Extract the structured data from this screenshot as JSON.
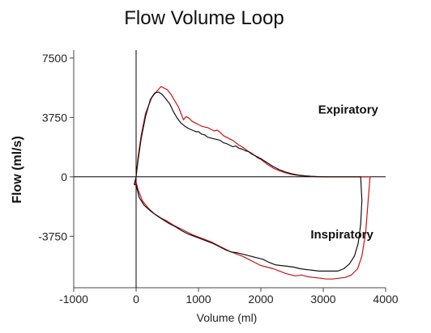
{
  "chart_data": {
    "type": "line",
    "title": "Flow Volume Loop",
    "xlabel": "Volume (ml)",
    "ylabel": "Flow (ml/s)",
    "xlim": [
      -1000,
      4000
    ],
    "ylim": [
      -7000,
      8000
    ],
    "xticks": [
      -1000,
      0,
      1000,
      2000,
      3000,
      4000
    ],
    "yticks": [
      7500,
      3750,
      0,
      -3750
    ],
    "grid": false,
    "annotations": [
      {
        "text": "Expiratory",
        "x": 3400,
        "y": 4000
      },
      {
        "text": "Inspiratory",
        "x": 3300,
        "y": -3900
      }
    ],
    "series": [
      {
        "color": "#cc1111",
        "x": [
          -30,
          0,
          30,
          80,
          150,
          250,
          330,
          400,
          450,
          500,
          560,
          620,
          680,
          720,
          760,
          800,
          850,
          900,
          950,
          1000,
          1050,
          1100,
          1150,
          1200,
          1250,
          1300,
          1350,
          1400,
          1450,
          1500,
          1550,
          1600,
          1650,
          1700,
          1750,
          1800,
          1850,
          1900,
          1950,
          2000,
          2100,
          2200,
          2300,
          2400,
          2500,
          2600,
          2700,
          2800,
          2900,
          3000,
          3100,
          3200,
          3300,
          3400,
          3500,
          3600,
          3700,
          3750,
          3720,
          3680,
          3620,
          3550,
          3450,
          3350,
          3250,
          3150,
          3050,
          2950,
          2850,
          2750,
          2650,
          2550,
          2400,
          2300,
          2200,
          2100,
          2000,
          1900,
          1800,
          1700,
          1600,
          1500,
          1400,
          1300,
          1200,
          1100,
          1000,
          900,
          800,
          700,
          600,
          500,
          400,
          300,
          200,
          100,
          30,
          0,
          -30
        ],
        "y": [
          -500,
          0,
          1200,
          2600,
          4000,
          5000,
          5400,
          5700,
          5600,
          5500,
          5200,
          4800,
          4400,
          4000,
          3600,
          3800,
          3700,
          3500,
          3400,
          3300,
          3200,
          3150,
          3100,
          3000,
          2900,
          2950,
          2800,
          2600,
          2500,
          2400,
          2300,
          2150,
          2000,
          1900,
          1750,
          1600,
          1500,
          1350,
          1200,
          1100,
          800,
          550,
          380,
          250,
          150,
          90,
          50,
          25,
          10,
          5,
          0,
          0,
          0,
          0,
          0,
          0,
          0,
          0,
          -1500,
          -3500,
          -5000,
          -5800,
          -6200,
          -6350,
          -6400,
          -6450,
          -6450,
          -6400,
          -6350,
          -6300,
          -6200,
          -6250,
          -6100,
          -5950,
          -5800,
          -5700,
          -5600,
          -5400,
          -5200,
          -5000,
          -4850,
          -4700,
          -4500,
          -4300,
          -4100,
          -3950,
          -3800,
          -3650,
          -3450,
          -3250,
          -3050,
          -2800,
          -2600,
          -2350,
          -2000,
          -1500,
          -800,
          -300,
          -500
        ]
      },
      {
        "color": "#111111",
        "x": [
          -30,
          0,
          30,
          80,
          150,
          230,
          300,
          360,
          420,
          480,
          540,
          600,
          660,
          720,
          780,
          840,
          900,
          960,
          1000,
          1050,
          1100,
          1150,
          1200,
          1250,
          1300,
          1350,
          1400,
          1450,
          1500,
          1550,
          1600,
          1650,
          1700,
          1750,
          1800,
          1850,
          1900,
          1950,
          2000,
          2100,
          2200,
          2300,
          2400,
          2500,
          2600,
          2700,
          2800,
          2900,
          3000,
          3100,
          3200,
          3300,
          3400,
          3500,
          3600,
          3620,
          3600,
          3560,
          3500,
          3420,
          3330,
          3230,
          3130,
          3030,
          2930,
          2830,
          2730,
          2630,
          2530,
          2430,
          2330,
          2230,
          2130,
          2030,
          1930,
          1830,
          1730,
          1630,
          1530,
          1430,
          1330,
          1230,
          1130,
          1030,
          930,
          830,
          730,
          630,
          530,
          430,
          330,
          230,
          130,
          50,
          0,
          -30
        ],
        "y": [
          -500,
          0,
          1000,
          2400,
          3800,
          4900,
          5300,
          5350,
          5200,
          4900,
          4600,
          4100,
          3700,
          3400,
          3200,
          3050,
          2950,
          2850,
          2850,
          2700,
          2650,
          2500,
          2450,
          2400,
          2350,
          2300,
          2150,
          2100,
          2000,
          1900,
          1950,
          1800,
          1750,
          1650,
          1600,
          1450,
          1350,
          1250,
          1150,
          900,
          650,
          450,
          300,
          190,
          110,
          65,
          35,
          15,
          5,
          0,
          0,
          0,
          0,
          0,
          0,
          -1500,
          -3000,
          -4200,
          -5000,
          -5500,
          -5800,
          -5950,
          -5950,
          -5950,
          -5950,
          -5900,
          -5850,
          -5800,
          -5700,
          -5650,
          -5600,
          -5550,
          -5400,
          -5200,
          -5100,
          -5000,
          -4900,
          -4800,
          -4750,
          -4600,
          -4400,
          -4200,
          -4050,
          -3900,
          -3750,
          -3600,
          -3400,
          -3150,
          -2950,
          -2700,
          -2450,
          -2150,
          -1800,
          -1300,
          -500,
          -500
        ]
      }
    ]
  }
}
